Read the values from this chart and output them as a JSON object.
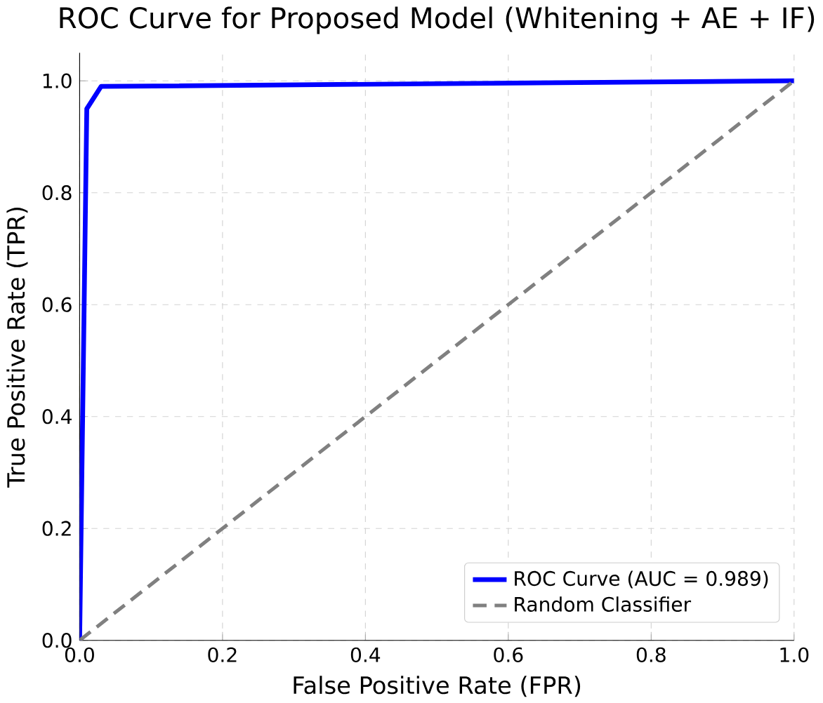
{
  "chart_data": {
    "type": "line",
    "title": "ROC Curve for Proposed Model (Whitening + AE + IF)",
    "xlabel": "False Positive Rate (FPR)",
    "ylabel": "True Positive Rate (TPR)",
    "xlim": [
      0,
      1
    ],
    "ylim": [
      0,
      1.05
    ],
    "xticks": [
      {
        "value": 0,
        "label": "0.0"
      },
      0.2,
      0.4,
      0.6,
      0.8,
      {
        "value": 1,
        "label": "1.0"
      }
    ],
    "yticks": [
      {
        "value": 0,
        "label": "0.0"
      },
      0.2,
      0.4,
      0.6,
      0.8,
      {
        "value": 1,
        "label": "1.0"
      }
    ],
    "grid": true,
    "legend": "bottom right",
    "marker": "none",
    "series": [
      {
        "name": "ROC Curve (AUC = 0.989)",
        "color": "#0000ff",
        "line_style": "solid",
        "x": [
          0,
          0.01,
          0.03,
          1
        ],
        "values": [
          0,
          0.95,
          0.99,
          1
        ]
      },
      {
        "name": "Random Classifier",
        "color": "#808080",
        "line_style": "dashed",
        "x": [
          0,
          1
        ],
        "values": [
          0,
          1
        ]
      }
    ]
  }
}
